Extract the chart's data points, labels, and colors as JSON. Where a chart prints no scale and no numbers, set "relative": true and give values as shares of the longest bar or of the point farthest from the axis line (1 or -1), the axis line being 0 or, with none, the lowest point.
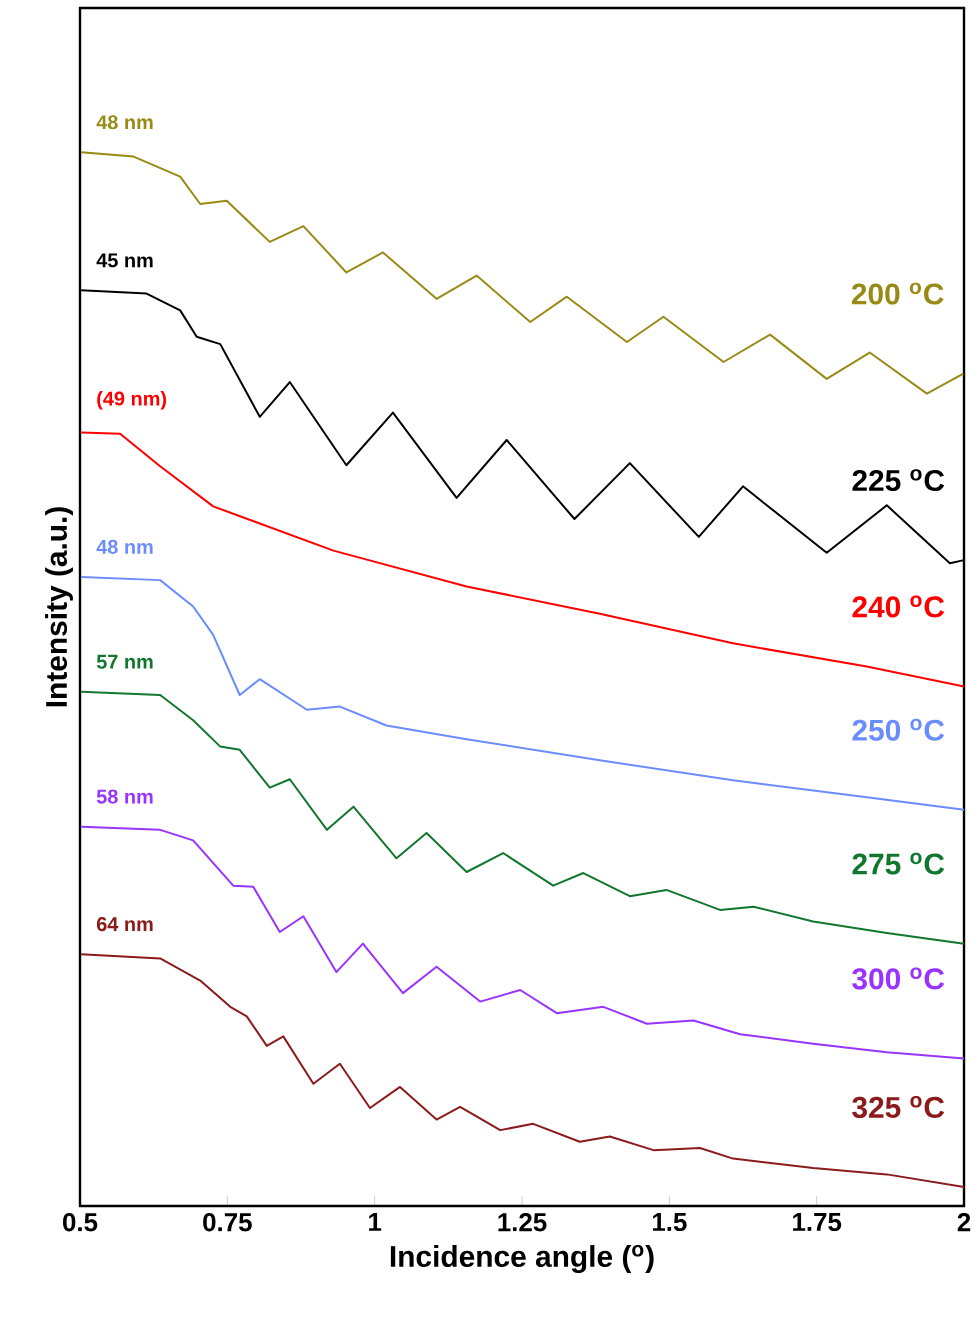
{
  "chart_data": {
    "type": "line",
    "relative": true,
    "xlabel": "Incidence angle ($^{o}$)",
    "ylabel": "Intensity (a.u.)",
    "xlim": [
      0.5,
      2
    ],
    "xticks": [
      0.5,
      0.75,
      1,
      1.25,
      1.5,
      1.75,
      2
    ],
    "tick_labels": "x",
    "series": [
      {
        "name": "200 $^{o}$C",
        "color": "#998a16",
        "x": [
          0.502,
          0.591,
          0.67,
          0.704,
          0.749,
          0.822,
          0.879,
          0.952,
          1.014,
          1.105,
          1.173,
          1.264,
          1.326,
          1.428,
          1.49,
          1.592,
          1.671,
          1.767,
          1.84,
          1.937,
          1.999
        ],
        "values": [
          1.0,
          0.996,
          0.977,
          0.951,
          0.954,
          0.915,
          0.93,
          0.886,
          0.905,
          0.861,
          0.883,
          0.839,
          0.863,
          0.82,
          0.844,
          0.801,
          0.827,
          0.785,
          0.81,
          0.771,
          0.79
        ]
      },
      {
        "name": "225 $^{o}$C",
        "color": "#000000",
        "x": [
          0.502,
          0.613,
          0.67,
          0.698,
          0.738,
          0.805,
          0.856,
          0.952,
          1.031,
          1.139,
          1.224,
          1.339,
          1.433,
          1.55,
          1.625,
          1.767,
          1.869,
          1.976,
          2.0
        ],
        "values": [
          0.869,
          0.866,
          0.85,
          0.825,
          0.818,
          0.749,
          0.782,
          0.703,
          0.753,
          0.672,
          0.727,
          0.652,
          0.705,
          0.635,
          0.683,
          0.62,
          0.665,
          0.61,
          0.613
        ]
      },
      {
        "name": "240 $^{o}$C",
        "color": "#ff0000",
        "x": [
          0.502,
          0.568,
          0.636,
          0.726,
          0.93,
          1.156,
          1.382,
          1.608,
          1.835,
          2.0
        ],
        "values": [
          0.734,
          0.733,
          0.702,
          0.664,
          0.622,
          0.588,
          0.562,
          0.534,
          0.512,
          0.493
        ]
      },
      {
        "name": "250 $^{o}$C",
        "color": "#6b8cff",
        "x": [
          0.502,
          0.636,
          0.692,
          0.726,
          0.771,
          0.805,
          0.885,
          0.941,
          1.02,
          1.156,
          1.382,
          1.608,
          1.835,
          2.0
        ],
        "values": [
          0.597,
          0.594,
          0.569,
          0.542,
          0.485,
          0.5,
          0.471,
          0.474,
          0.456,
          0.443,
          0.423,
          0.404,
          0.388,
          0.376
        ]
      },
      {
        "name": "275 $^{o}$C",
        "color": "#12772e",
        "x": [
          0.502,
          0.636,
          0.692,
          0.738,
          0.771,
          0.822,
          0.856,
          0.919,
          0.964,
          1.037,
          1.088,
          1.156,
          1.218,
          1.303,
          1.354,
          1.433,
          1.495,
          1.586,
          1.643,
          1.744,
          1.869,
          2.0
        ],
        "values": [
          0.488,
          0.485,
          0.461,
          0.436,
          0.433,
          0.397,
          0.405,
          0.357,
          0.379,
          0.33,
          0.354,
          0.317,
          0.335,
          0.304,
          0.316,
          0.294,
          0.3,
          0.281,
          0.284,
          0.27,
          0.259,
          0.249
        ]
      },
      {
        "name": "300 $^{o}$C",
        "color": "#9933ff",
        "x": [
          0.502,
          0.636,
          0.692,
          0.76,
          0.794,
          0.839,
          0.879,
          0.935,
          0.98,
          1.048,
          1.105,
          1.179,
          1.247,
          1.309,
          1.388,
          1.462,
          1.541,
          1.62,
          1.744,
          1.869,
          2.0
        ],
        "values": [
          0.36,
          0.357,
          0.347,
          0.304,
          0.303,
          0.26,
          0.275,
          0.222,
          0.249,
          0.202,
          0.227,
          0.194,
          0.205,
          0.183,
          0.189,
          0.173,
          0.176,
          0.163,
          0.154,
          0.146,
          0.14
        ]
      },
      {
        "name": "325 $^{o}$C",
        "color": "#8b1a1a",
        "x": [
          0.502,
          0.636,
          0.704,
          0.755,
          0.783,
          0.817,
          0.845,
          0.896,
          0.941,
          0.992,
          1.043,
          1.105,
          1.145,
          1.213,
          1.269,
          1.348,
          1.399,
          1.473,
          1.552,
          1.608,
          1.744,
          1.869,
          2.0
        ],
        "values": [
          0.239,
          0.235,
          0.214,
          0.189,
          0.18,
          0.152,
          0.161,
          0.116,
          0.135,
          0.093,
          0.113,
          0.082,
          0.094,
          0.072,
          0.078,
          0.061,
          0.066,
          0.053,
          0.055,
          0.045,
          0.036,
          0.03,
          0.018
        ]
      }
    ],
    "annotations": [
      "48 nm",
      "45 nm",
      "(49 nm)",
      "48 nm",
      "57 nm",
      "58 nm",
      "64 nm"
    ]
  }
}
